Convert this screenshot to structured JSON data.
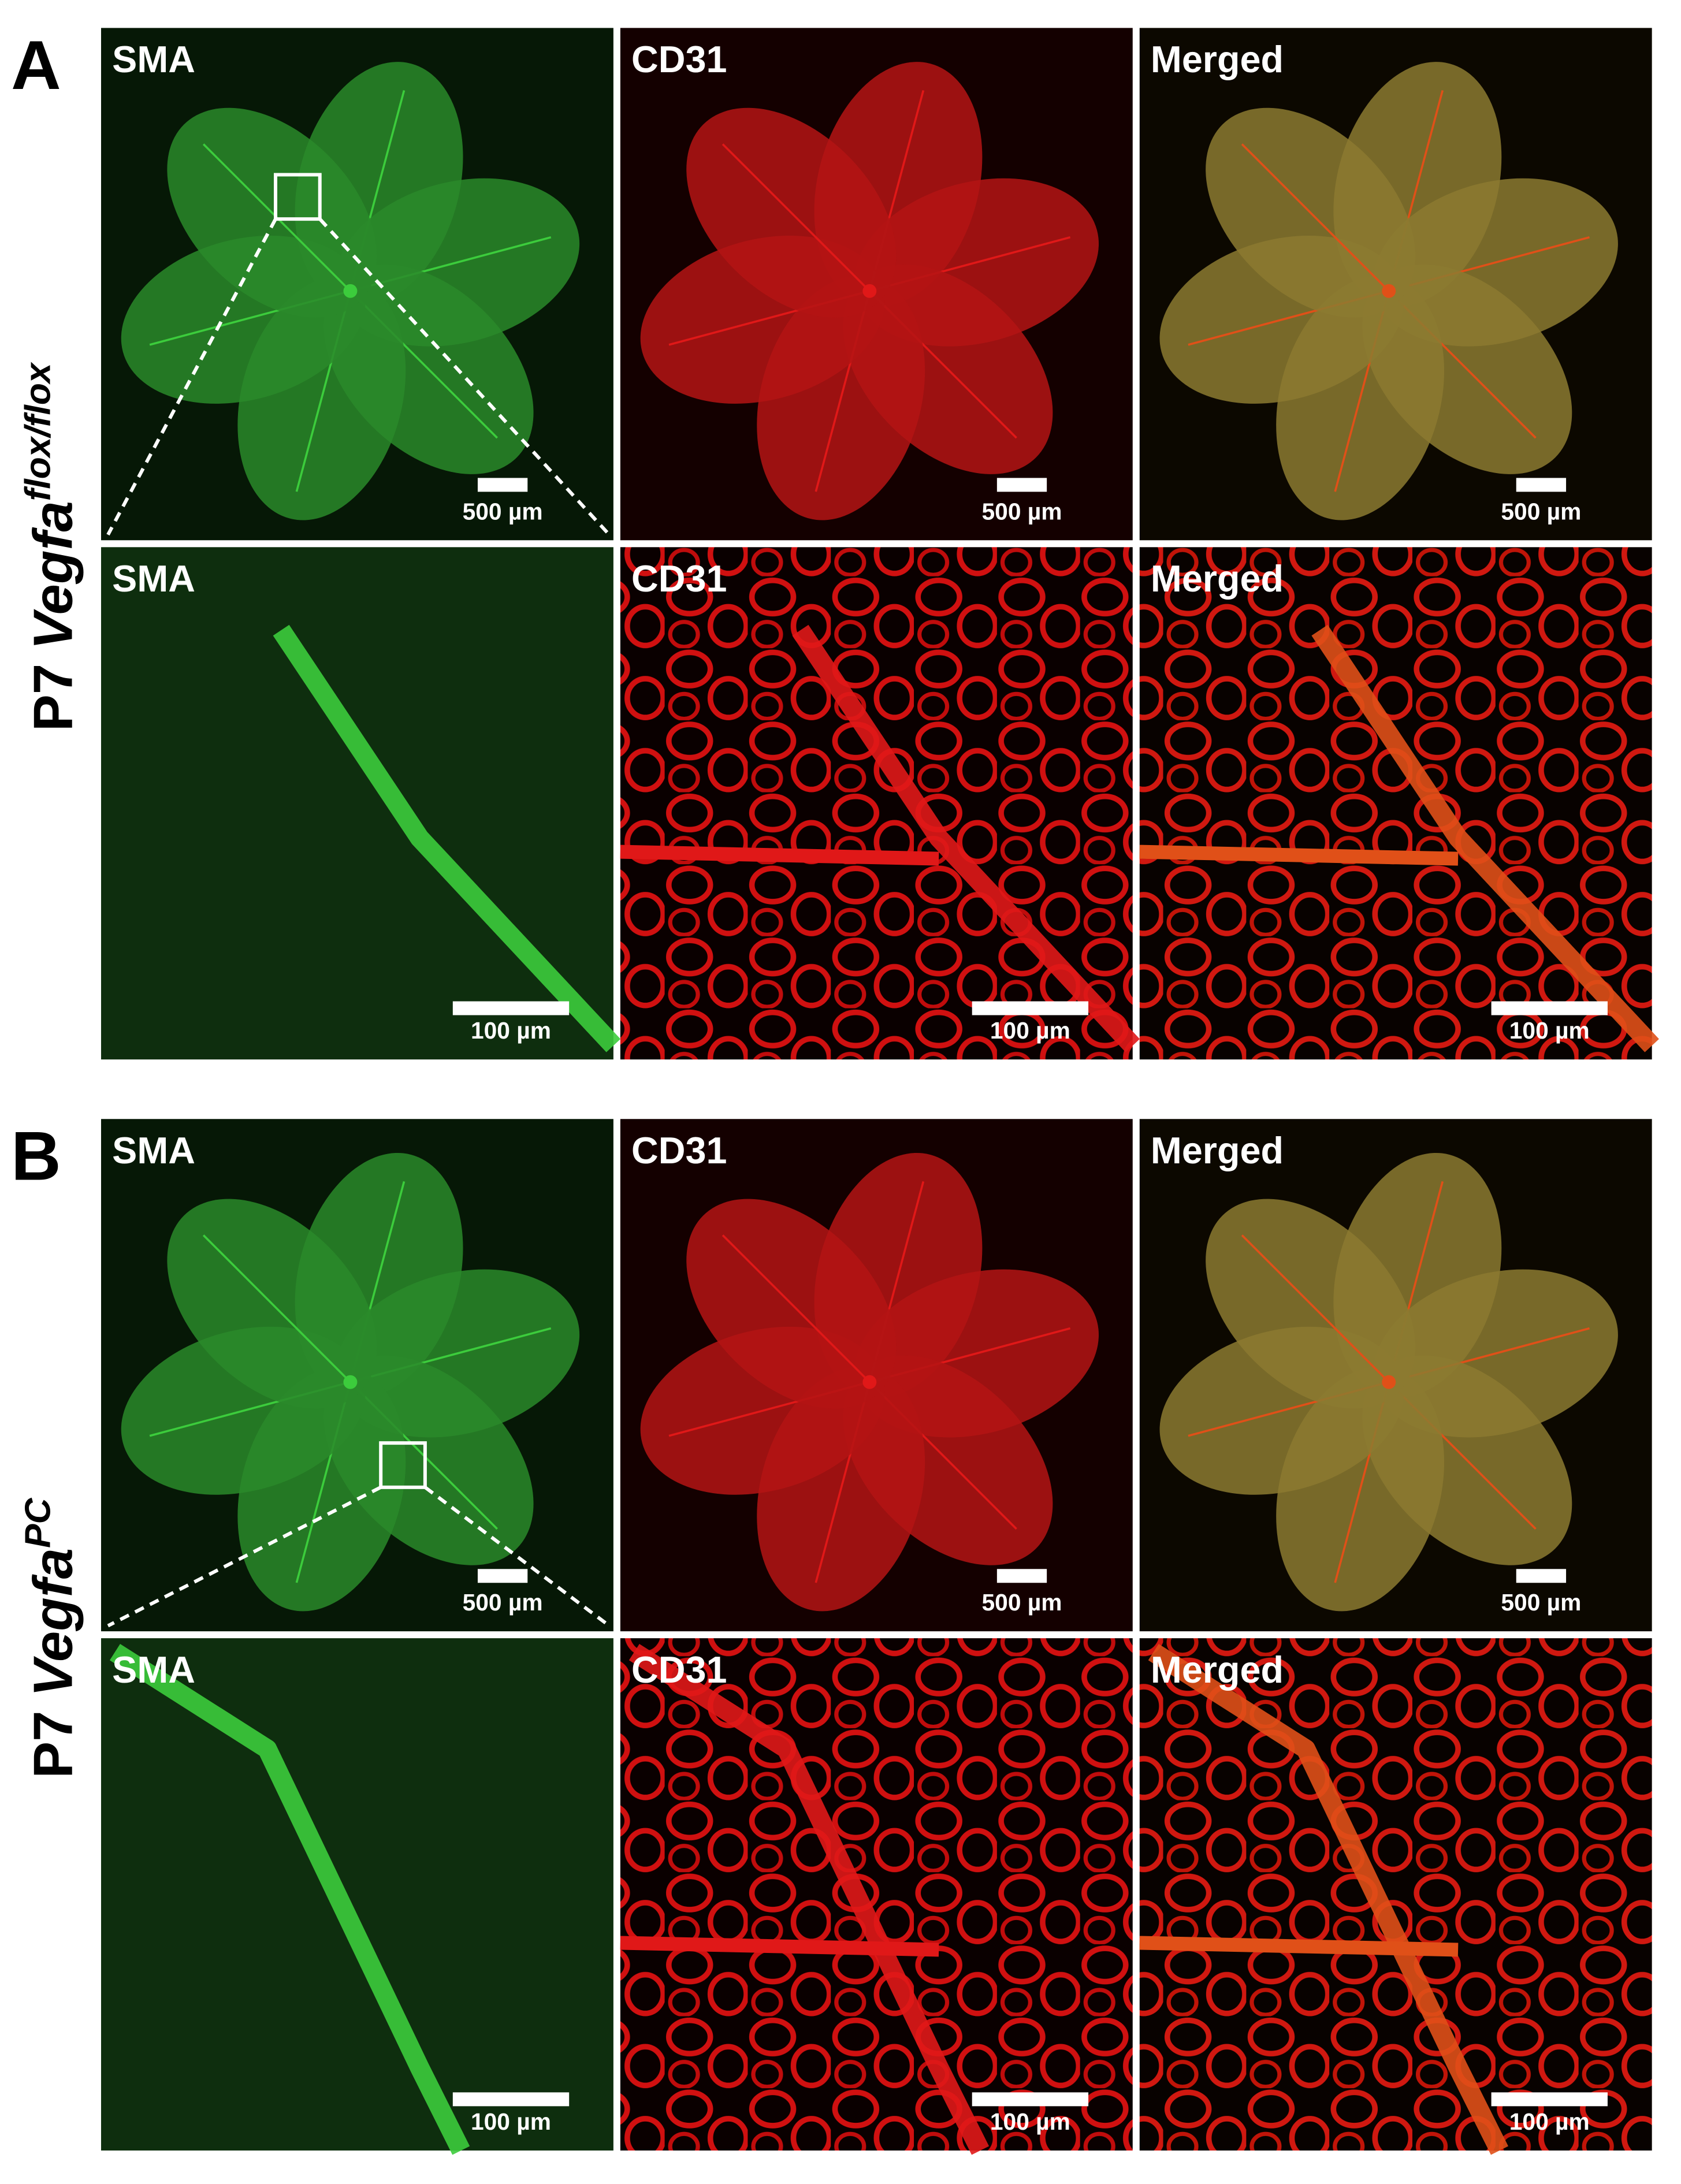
{
  "panels": [
    {
      "letter": "A",
      "genotype": {
        "prefix": "P7",
        "gene": "Vegfa",
        "superscript": "flox/flox"
      },
      "rows": [
        {
          "images": [
            {
              "label": "SMA",
              "scale_bar": "500 µm"
            },
            {
              "label": "CD31",
              "scale_bar": "500 µm"
            },
            {
              "label": "Merged",
              "scale_bar": "500 µm"
            }
          ]
        },
        {
          "images": [
            {
              "label": "SMA",
              "scale_bar": "100 µm"
            },
            {
              "label": "CD31",
              "scale_bar": "100 µm"
            },
            {
              "label": "Merged",
              "scale_bar": "100 µm"
            }
          ]
        }
      ]
    },
    {
      "letter": "B",
      "genotype": {
        "prefix": "P7",
        "gene": "Vegfa",
        "superscript": "PC"
      },
      "rows": [
        {
          "images": [
            {
              "label": "SMA",
              "scale_bar": "500 µm"
            },
            {
              "label": "CD31",
              "scale_bar": "500 µm"
            },
            {
              "label": "Merged",
              "scale_bar": "500 µm"
            }
          ]
        },
        {
          "images": [
            {
              "label": "SMA",
              "scale_bar": "100 µm"
            },
            {
              "label": "CD31",
              "scale_bar": "100 µm"
            },
            {
              "label": "Merged",
              "scale_bar": "100 µm"
            }
          ]
        }
      ]
    }
  ]
}
